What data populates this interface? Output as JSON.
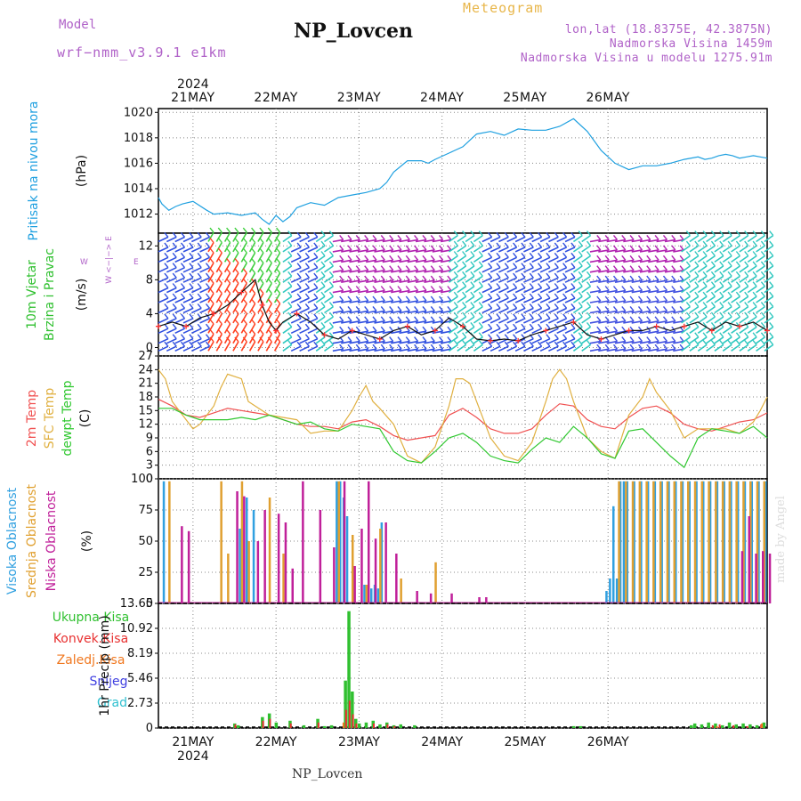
{
  "header": {
    "model_label": "Model",
    "model_name": "wrf−nmm_v3.9.1  e1km",
    "station": "NP_Lovcen",
    "chart_kind": "Meteogram",
    "coords": "lon,lat (18.8375E, 42.3875N)",
    "altitude": "Nadmorska Visina 1459m",
    "model_altitude": "Nadmorska Visina u modelu 1275.91m"
  },
  "footer": {
    "station": "NP_Lovcen",
    "made_by": "made by Angel"
  },
  "colors": {
    "pressure": "#1fa0e0",
    "t2m": "#f05050",
    "tsfc": "#e0b040",
    "dewpt": "#30c830",
    "cloud_high": "#30a0e0",
    "cloud_mid": "#e0a030",
    "cloud_low": "#c0209a",
    "precip_total": "#30c030",
    "precip_conv": "#e83030",
    "precip_frozen": "#f07820",
    "snow": "#4040e0",
    "hail": "#30c0d0",
    "wind_speed": "#111111",
    "wind_red": "#ff3030"
  },
  "chart_data": [
    {
      "type": "line",
      "panel": "pressure",
      "ylabel_rotated": "Pritisak na nivou mora",
      "unit": "(hPa)",
      "ylim": [
        1010.5,
        1020.3
      ],
      "yticks": [
        "1012",
        "1014",
        "1016",
        "1018",
        "1020"
      ],
      "x_top": [
        "21MAY",
        "22MAY",
        "23MAY",
        "24MAY",
        "25MAY",
        "26MAY"
      ],
      "x_top_year": "2024",
      "grid": true,
      "series": [
        {
          "x": [
            0,
            1,
            3,
            5,
            7,
            10,
            14,
            16,
            20,
            24,
            28,
            30,
            32,
            34,
            36,
            38,
            40,
            44,
            48,
            52,
            56,
            60,
            64,
            66,
            68,
            72,
            76,
            78,
            80,
            84,
            88,
            92,
            96,
            100,
            104,
            108,
            112,
            116,
            120,
            124,
            128,
            132,
            136,
            140,
            144,
            148,
            152,
            156,
            158,
            160,
            162,
            164,
            166,
            168,
            170,
            172,
            174,
            176
          ],
          "values": [
            1013.3,
            1012.8,
            1012.3,
            1012.6,
            1012.8,
            1013.0,
            1012.3,
            1012.0,
            1012.1,
            1011.9,
            1012.1,
            1011.6,
            1011.2,
            1011.9,
            1011.4,
            1011.8,
            1012.5,
            1012.9,
            1012.7,
            1013.3,
            1013.5,
            1013.7,
            1014.0,
            1014.5,
            1015.3,
            1016.2,
            1016.2,
            1016.0,
            1016.3,
            1016.8,
            1017.3,
            1018.3,
            1018.5,
            1018.2,
            1018.7,
            1018.6,
            1018.6,
            1018.9,
            1019.5,
            1018.5,
            1017.0,
            1016.0,
            1015.5,
            1015.8,
            1015.8,
            1016.0,
            1016.3,
            1016.5,
            1016.3,
            1016.4,
            1016.6,
            1016.7,
            1016.6,
            1016.4,
            1016.5,
            1016.6,
            1016.5,
            1016.4
          ]
        }
      ]
    },
    {
      "type": "barbs",
      "panel": "wind",
      "ylabel_rotated_1": "10m Vjetar",
      "ylabel_rotated_2": "Brzina i Pravac",
      "unit": "(m/s)",
      "compass": "W <−|−> E",
      "compass_n": "N",
      "compass_s": "S",
      "ylim": [
        -1,
        13.5
      ],
      "yticks": [
        "0",
        "4",
        "8",
        "12"
      ],
      "speed_series": {
        "x": [
          0,
          4,
          8,
          12,
          16,
          20,
          24,
          28,
          30,
          32,
          34,
          36,
          40,
          44,
          48,
          52,
          56,
          60,
          64,
          68,
          72,
          76,
          80,
          84,
          88,
          92,
          96,
          100,
          104,
          108,
          112,
          116,
          120,
          124,
          128,
          132,
          136,
          140,
          144,
          148,
          152,
          156,
          160,
          164,
          168,
          172,
          176
        ],
        "values": [
          2.5,
          3.0,
          2.5,
          3.5,
          4.0,
          5.0,
          6.5,
          8.0,
          5.0,
          3.0,
          2.0,
          3.0,
          4.0,
          3.0,
          1.5,
          1.0,
          2.0,
          1.5,
          1.0,
          2.0,
          2.5,
          1.5,
          2.0,
          3.5,
          2.5,
          1.0,
          0.8,
          1.0,
          0.8,
          1.5,
          2.0,
          2.5,
          3.0,
          1.5,
          1.0,
          1.5,
          2.0,
          2.0,
          2.5,
          2.0,
          2.5,
          3.0,
          2.0,
          3.0,
          2.5,
          3.0,
          2.0
        ]
      }
    },
    {
      "type": "line",
      "panel": "temperature",
      "ylabels_rotated": [
        "2m Temp",
        "SFC Temp",
        "dewpt Temp"
      ],
      "unit": "(C)",
      "ylim": [
        0,
        27
      ],
      "yticks": [
        "0",
        "3",
        "6",
        "9",
        "12",
        "15",
        "18",
        "21",
        "24",
        "27"
      ],
      "series": [
        {
          "name": "2m Temp",
          "x": [
            0,
            4,
            8,
            12,
            16,
            20,
            24,
            28,
            32,
            36,
            40,
            44,
            48,
            52,
            56,
            60,
            64,
            68,
            72,
            76,
            80,
            84,
            88,
            92,
            96,
            100,
            104,
            108,
            112,
            116,
            120,
            124,
            128,
            132,
            136,
            140,
            144,
            148,
            152,
            156,
            160,
            164,
            168,
            172,
            176
          ],
          "values": [
            17.5,
            16.0,
            14.0,
            13.5,
            14.5,
            15.5,
            15.0,
            14.5,
            14.0,
            13.0,
            12.0,
            11.5,
            11.5,
            11.0,
            12.5,
            13.0,
            11.5,
            9.5,
            8.5,
            9.0,
            9.5,
            14.0,
            15.5,
            13.5,
            11.0,
            10.0,
            10.0,
            11.0,
            14.0,
            16.5,
            16.0,
            13.0,
            11.5,
            11.0,
            13.5,
            15.5,
            16.0,
            14.5,
            12.0,
            11.0,
            10.5,
            11.5,
            12.5,
            13.0,
            14.5
          ]
        },
        {
          "name": "SFC Temp",
          "x": [
            0,
            2,
            4,
            8,
            10,
            12,
            16,
            18,
            20,
            24,
            26,
            28,
            32,
            36,
            40,
            44,
            48,
            52,
            56,
            58,
            60,
            62,
            64,
            68,
            72,
            76,
            80,
            84,
            86,
            88,
            90,
            92,
            96,
            100,
            104,
            108,
            112,
            114,
            116,
            118,
            120,
            124,
            128,
            132,
            136,
            140,
            142,
            144,
            148,
            152,
            156,
            160,
            164,
            168,
            172,
            174,
            176
          ],
          "values": [
            24.0,
            22.0,
            17.0,
            13.0,
            11.0,
            12.0,
            16.0,
            20.0,
            23.0,
            22.0,
            17.0,
            16.0,
            14.0,
            13.5,
            13.0,
            10.0,
            10.5,
            10.5,
            15.0,
            18.0,
            20.5,
            17.0,
            15.5,
            12.0,
            5.0,
            3.5,
            7.0,
            16.0,
            22.0,
            22.0,
            21.0,
            17.0,
            9.0,
            5.0,
            4.0,
            8.0,
            17.0,
            22.0,
            24.0,
            22.0,
            17.0,
            9.0,
            6.0,
            4.5,
            14.0,
            18.0,
            22.0,
            19.0,
            15.0,
            9.0,
            11.0,
            11.0,
            11.0,
            10.0,
            12.5,
            15.0,
            18.0
          ]
        },
        {
          "name": "dewpt Temp",
          "x": [
            0,
            4,
            8,
            12,
            16,
            20,
            24,
            28,
            32,
            36,
            40,
            44,
            48,
            52,
            56,
            60,
            64,
            68,
            72,
            76,
            80,
            84,
            88,
            92,
            96,
            100,
            104,
            108,
            112,
            116,
            120,
            124,
            128,
            132,
            136,
            140,
            144,
            148,
            152,
            156,
            160,
            164,
            168,
            172,
            176
          ],
          "values": [
            15.5,
            15.5,
            14.0,
            13.0,
            13.0,
            13.0,
            13.5,
            13.0,
            14.0,
            13.0,
            12.0,
            12.5,
            11.0,
            10.5,
            12.0,
            11.5,
            11.0,
            6.0,
            4.0,
            3.5,
            6.0,
            9.0,
            10.0,
            8.0,
            5.0,
            4.0,
            3.5,
            6.5,
            9.0,
            8.0,
            11.5,
            9.0,
            5.5,
            4.5,
            10.5,
            11.0,
            8.0,
            5.0,
            2.5,
            9.0,
            11.0,
            10.5,
            10.0,
            11.5,
            9.0
          ]
        }
      ]
    },
    {
      "type": "bar",
      "panel": "clouds",
      "ylabels_rotated": [
        "Visoka Oblacnost",
        "Srednja Oblacnost",
        "Niska Oblacnost"
      ],
      "unit": "(%)",
      "ylim": [
        0,
        100
      ],
      "yticks": [
        "0",
        "25",
        "50",
        "75",
        "100"
      ],
      "series": [
        {
          "name": "Visoka Oblacnost",
          "x": [
            2,
            24,
            26,
            28,
            52,
            53,
            54,
            55,
            60,
            61,
            62,
            63,
            64,
            65,
            130,
            131,
            132,
            133,
            134,
            135,
            136,
            138,
            140,
            142,
            144,
            146,
            148,
            150,
            152,
            154,
            156,
            158,
            160,
            162,
            164,
            166,
            168,
            170,
            172,
            174,
            176
          ],
          "values": [
            98,
            60,
            85,
            75,
            98,
            98,
            85,
            70,
            15,
            12,
            12,
            15,
            12,
            65,
            10,
            20,
            78,
            20,
            98,
            98,
            98,
            98,
            98,
            98,
            98,
            98,
            98,
            98,
            98,
            98,
            98,
            98,
            98,
            98,
            98,
            98,
            98,
            98,
            98,
            98,
            98
          ]
        },
        {
          "name": "Srednja Oblacnost",
          "x": [
            3,
            18,
            20,
            24,
            26,
            32,
            36,
            52,
            56,
            60,
            64,
            70,
            80,
            133,
            135,
            137,
            139,
            141,
            143,
            145,
            147,
            149,
            151,
            153,
            155,
            157,
            159,
            161,
            163,
            165,
            167,
            169,
            171,
            173,
            175
          ],
          "values": [
            98,
            98,
            40,
            98,
            50,
            85,
            40,
            98,
            55,
            15,
            60,
            20,
            33,
            98,
            98,
            98,
            98,
            98,
            98,
            98,
            98,
            98,
            98,
            98,
            98,
            98,
            98,
            98,
            98,
            98,
            98,
            98,
            98,
            98,
            98
          ]
        },
        {
          "name": "Niska Oblacnost",
          "x": [
            6,
            8,
            22,
            24,
            28,
            30,
            34,
            36,
            38,
            41,
            46,
            50,
            53,
            56,
            58,
            60,
            62,
            65,
            68,
            74,
            78,
            84,
            92,
            94,
            168,
            170,
            172,
            174,
            176
          ],
          "values": [
            62,
            58,
            90,
            86,
            50,
            75,
            72,
            65,
            28,
            98,
            75,
            45,
            98,
            30,
            60,
            98,
            52,
            65,
            40,
            10,
            8,
            8,
            5,
            5,
            42,
            70,
            40,
            42,
            40
          ]
        }
      ]
    },
    {
      "type": "bar",
      "panel": "precip",
      "legend": [
        "Ukupna Kisa",
        "Konvek.Kisa",
        "Zaledj.Kisa",
        "Snijeg",
        "Grad"
      ],
      "ylabel_rotated": "1hr Precip (mm)",
      "ylim": [
        0,
        13.65
      ],
      "yticks": [
        "0",
        "2.73",
        "5.46",
        "8.19",
        "10.92",
        "13.65"
      ],
      "x_bottom": [
        "21MAY",
        "22MAY",
        "23MAY",
        "24MAY",
        "25MAY",
        "26MAY"
      ],
      "x_bottom_year": "2024",
      "series": [
        {
          "name": "Ukupna Kisa",
          "x": [
            22,
            23,
            30,
            32,
            34,
            38,
            42,
            46,
            48,
            50,
            54,
            55,
            56,
            57,
            58,
            60,
            62,
            64,
            66,
            68,
            70,
            74,
            120,
            122,
            154,
            155,
            157,
            159,
            161,
            163,
            165,
            167,
            169,
            171,
            173,
            175
          ],
          "values": [
            0.5,
            0.3,
            1.2,
            1.6,
            0.6,
            0.8,
            0.3,
            1.0,
            0.2,
            0.3,
            5.2,
            12.8,
            4.0,
            1.0,
            0.5,
            0.6,
            0.8,
            0.4,
            0.6,
            0.3,
            0.4,
            0.3,
            0.2,
            0.2,
            0.3,
            0.5,
            0.4,
            0.6,
            0.5,
            0.3,
            0.6,
            0.4,
            0.5,
            0.4,
            0.3,
            0.6
          ]
        },
        {
          "name": "Konvek.Kisa",
          "x": [
            22,
            30,
            32,
            38,
            46,
            54,
            55,
            56,
            57,
            62,
            66,
            68,
            160,
            162,
            166,
            170,
            174
          ],
          "values": [
            0.4,
            0.8,
            1.0,
            0.5,
            0.6,
            2.0,
            3.0,
            1.5,
            0.5,
            0.5,
            0.4,
            0.2,
            0.3,
            0.4,
            0.3,
            0.2,
            0.4
          ]
        },
        {
          "name": "Zaledj.Kisa",
          "x": [
            54,
            162,
            175
          ],
          "values": [
            0.6,
            0.2,
            0.5
          ]
        }
      ]
    }
  ]
}
